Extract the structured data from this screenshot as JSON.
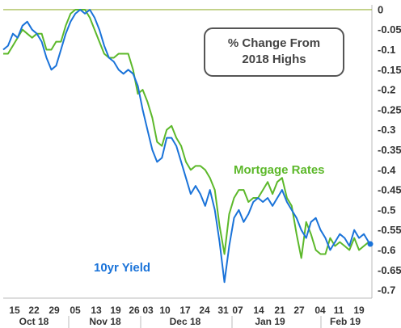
{
  "chart_data": {
    "type": "line",
    "title_lines": [
      "% Change From",
      "2018 Highs"
    ],
    "y_ticks": [
      "0",
      "-0.05",
      "-0.1",
      "-0.15",
      "-0.2",
      "-0.25",
      "-0.3",
      "-0.35",
      "-0.4",
      "-0.45",
      "-0.5",
      "-0.55",
      "-0.6",
      "-0.65",
      "-0.7"
    ],
    "y_tick_values": [
      0,
      -0.05,
      -0.1,
      -0.15,
      -0.2,
      -0.25,
      -0.3,
      -0.35,
      -0.4,
      -0.45,
      -0.5,
      -0.55,
      -0.6,
      -0.65,
      -0.7
    ],
    "y_bold_ticks": [
      "0",
      "-0.5"
    ],
    "ylim": [
      -0.72,
      0.012
    ],
    "x_day_labels": [
      "15",
      "22",
      "29",
      "05",
      "13",
      "19",
      "26",
      "03",
      "10",
      "17",
      "24",
      "31",
      "07",
      "14",
      "21",
      "27",
      "04",
      "11",
      "19"
    ],
    "x_month_labels": [
      "Oct 18",
      "Nov 18",
      "Dec 18",
      "Jan 19",
      "Feb 19"
    ],
    "series": [
      {
        "name": "10yr Yield",
        "color": "#1a73d9",
        "values": [
          -0.1,
          -0.09,
          -0.06,
          -0.07,
          -0.04,
          -0.03,
          -0.05,
          -0.06,
          -0.08,
          -0.12,
          -0.15,
          -0.14,
          -0.1,
          -0.06,
          -0.03,
          -0.01,
          0.0,
          -0.01,
          0.0,
          -0.02,
          -0.05,
          -0.09,
          -0.12,
          -0.13,
          -0.15,
          -0.16,
          -0.15,
          -0.16,
          -0.19,
          -0.25,
          -0.3,
          -0.35,
          -0.38,
          -0.37,
          -0.32,
          -0.32,
          -0.34,
          -0.38,
          -0.42,
          -0.46,
          -0.44,
          -0.46,
          -0.49,
          -0.45,
          -0.5,
          -0.58,
          -0.68,
          -0.59,
          -0.52,
          -0.5,
          -0.53,
          -0.51,
          -0.48,
          -0.47,
          -0.48,
          -0.47,
          -0.49,
          -0.47,
          -0.45,
          -0.48,
          -0.5,
          -0.52,
          -0.55,
          -0.57,
          -0.53,
          -0.52,
          -0.55,
          -0.57,
          -0.6,
          -0.58,
          -0.56,
          -0.57,
          -0.59,
          -0.55,
          -0.57,
          -0.56,
          -0.58
        ]
      },
      {
        "name": "Mortgage Rates",
        "color": "#5cb82a",
        "values": [
          -0.11,
          -0.11,
          -0.09,
          -0.07,
          -0.05,
          -0.06,
          -0.07,
          -0.06,
          -0.06,
          -0.1,
          -0.1,
          -0.08,
          -0.08,
          -0.04,
          -0.01,
          0.0,
          0.0,
          0.0,
          -0.02,
          -0.05,
          -0.08,
          -0.11,
          -0.12,
          -0.12,
          -0.11,
          -0.11,
          -0.11,
          -0.15,
          -0.21,
          -0.2,
          -0.23,
          -0.27,
          -0.33,
          -0.34,
          -0.3,
          -0.29,
          -0.32,
          -0.34,
          -0.38,
          -0.4,
          -0.39,
          -0.39,
          -0.4,
          -0.42,
          -0.45,
          -0.54,
          -0.61,
          -0.51,
          -0.47,
          -0.45,
          -0.45,
          -0.48,
          -0.47,
          -0.47,
          -0.45,
          -0.43,
          -0.46,
          -0.43,
          -0.42,
          -0.47,
          -0.49,
          -0.56,
          -0.62,
          -0.53,
          -0.56,
          -0.6,
          -0.61,
          -0.61,
          -0.57,
          -0.59,
          -0.58,
          -0.59,
          -0.6,
          -0.57,
          -0.6,
          -0.59,
          -0.58
        ]
      }
    ],
    "last_point_marker": {
      "series": "10yr Yield",
      "value": -0.585,
      "color": "#1a73d9"
    },
    "reference_line": {
      "value": 0,
      "color": "#9ab33a"
    },
    "grid": false
  }
}
